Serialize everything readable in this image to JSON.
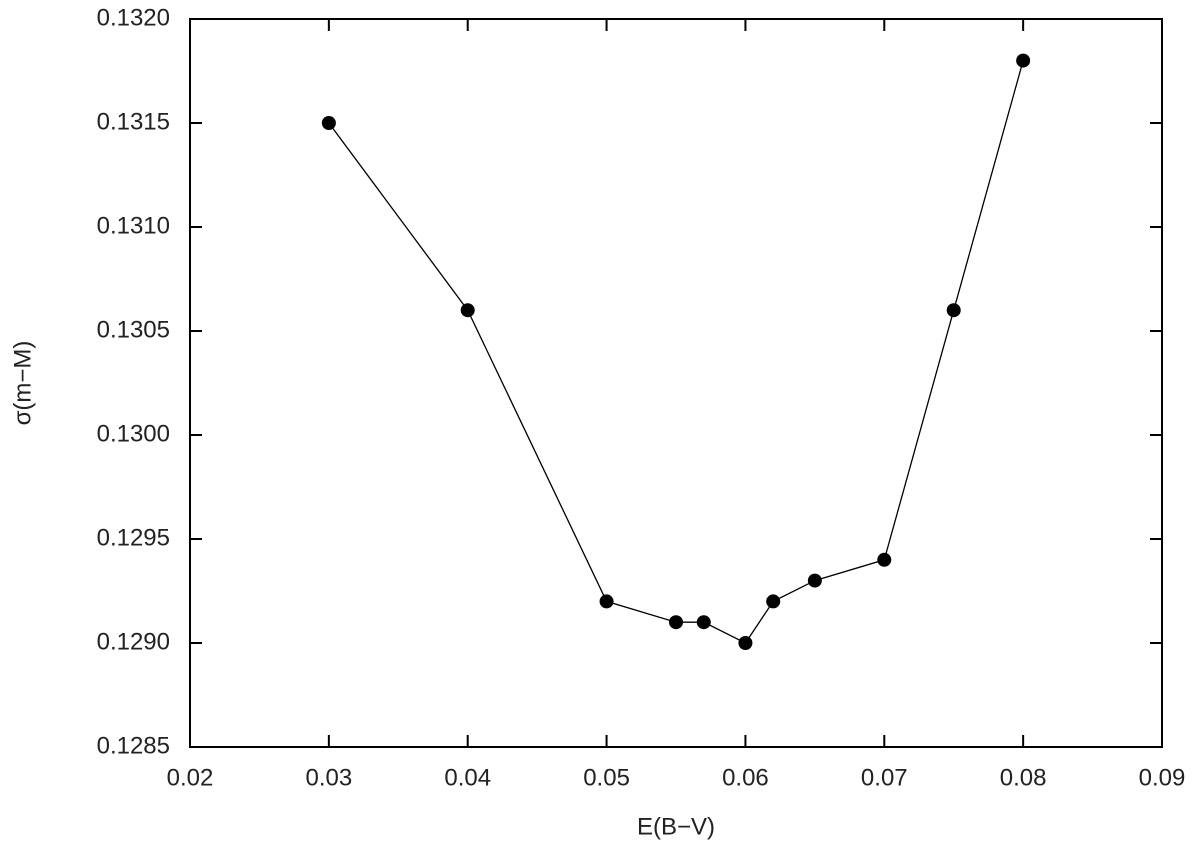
{
  "chart_data": {
    "type": "line",
    "x_label": "E(B−V)",
    "y_label": "σ(m−M)",
    "x": [
      0.03,
      0.04,
      0.05,
      0.055,
      0.057,
      0.06,
      0.062,
      0.065,
      0.07,
      0.075,
      0.08
    ],
    "values": [
      0.1315,
      0.1306,
      0.1292,
      0.1291,
      0.1291,
      0.129,
      0.1292,
      0.1293,
      0.1294,
      0.1306,
      0.1318
    ],
    "color": "#000000",
    "xlim": [
      0.02,
      0.09
    ],
    "xticks": [
      0.02,
      0.03,
      0.04,
      0.05,
      0.06,
      0.07,
      0.08,
      0.09
    ],
    "ylim": [
      0.1285,
      0.132
    ],
    "yticks": [
      0.1285,
      {
        "value": 0.129,
        "label": "0.1290"
      },
      0.1295,
      {
        "value": 0.13,
        "label": "0.1300"
      },
      0.1305,
      {
        "value": 0.131,
        "label": "0.1310"
      },
      0.1315,
      {
        "value": 0.132,
        "label": "0.1320"
      }
    ]
  }
}
